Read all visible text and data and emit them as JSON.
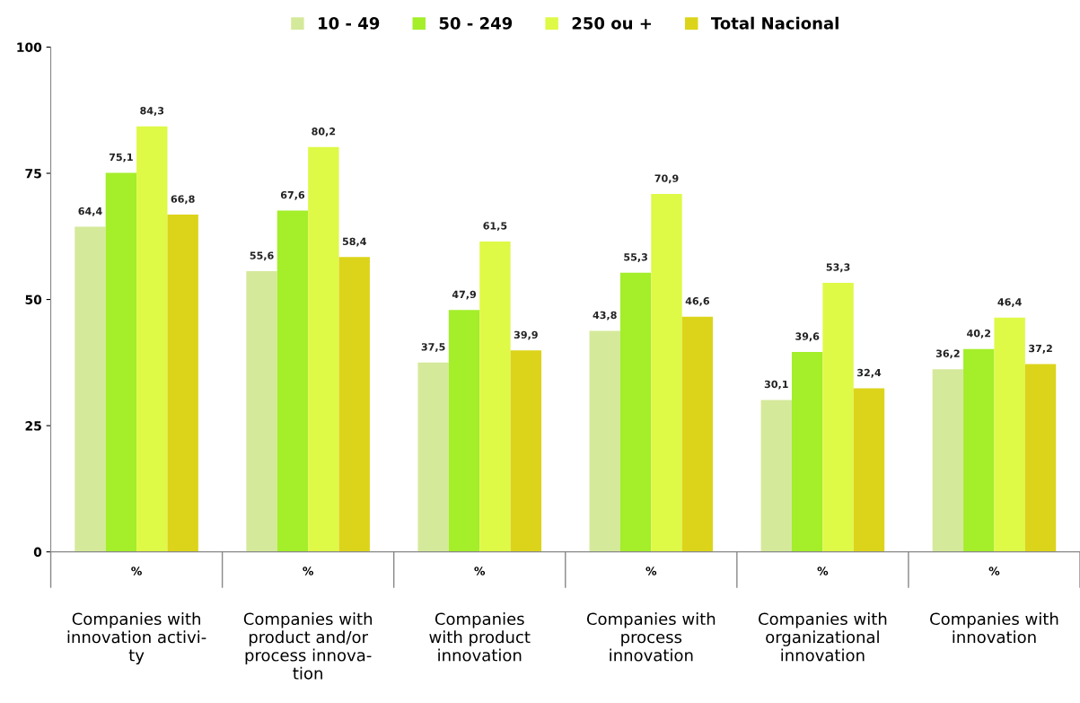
{
  "chart_data": {
    "type": "bar",
    "categories": [
      "Companies with\ninnovation activi-\nty",
      "Companies with\nproduct and/or\nprocess innova-\ntion",
      "Companies\nwith product\ninnovation",
      "Companies with\nprocess\ninnovation",
      "Companies with\norganizational\ninnovation",
      "Companies with\ninnovation"
    ],
    "series": [
      {
        "name": "10 - 49",
        "color": "#d5e99b",
        "values": [
          64.4,
          55.6,
          37.5,
          43.8,
          30.1,
          36.2
        ],
        "value_labels": [
          "64,4",
          "55,6",
          "37,5",
          "43,8",
          "30,1",
          "36,2"
        ]
      },
      {
        "name": "50 - 249",
        "color": "#a4ee2a",
        "values": [
          75.1,
          67.6,
          47.9,
          55.3,
          39.6,
          40.2
        ],
        "value_labels": [
          "75,1",
          "67,6",
          "47,9",
          "55,3",
          "39,6",
          "40,2"
        ]
      },
      {
        "name": "250 ou +",
        "color": "#dff947",
        "values": [
          84.3,
          80.2,
          61.5,
          70.9,
          53.3,
          46.4
        ],
        "value_labels": [
          "84,3",
          "80,2",
          "61,5",
          "70,9",
          "53,3",
          "46,4"
        ]
      },
      {
        "name": "Total Nacional",
        "color": "#dcd41a",
        "values": [
          66.8,
          58.4,
          39.9,
          46.6,
          32.4,
          37.2
        ],
        "value_labels": [
          "66,8",
          "58,4",
          "39,9",
          "46,6",
          "32,4",
          "37,2"
        ]
      }
    ],
    "ylim": [
      0,
      100
    ],
    "yticks": [
      0,
      25,
      50,
      75,
      100
    ],
    "annotations": [
      "%",
      "%",
      "%",
      "%",
      "%",
      "%"
    ],
    "grid": false,
    "legend": "top"
  }
}
